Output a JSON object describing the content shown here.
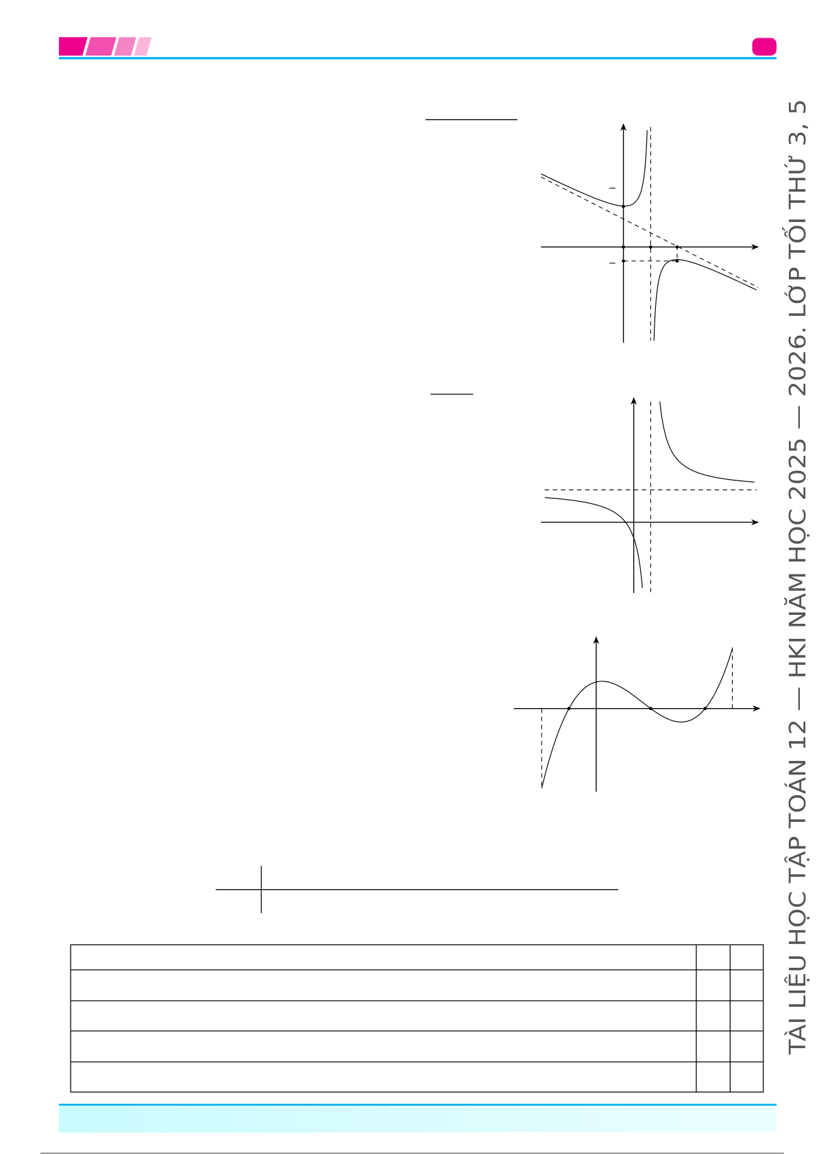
{
  "header": {
    "accent_colors": [
      "#ec008c",
      "#f34fae",
      "#f585c5",
      "#fbb6dc"
    ],
    "rule_color": "#00aeef",
    "badge_color": "#ec008c"
  },
  "side_text": "TÀI LIỆU HỌC TẬP TOÁN 12 — HKI NĂM HỌC 2025 — 2026. LỚP TỐI THỨ 3, 5",
  "footer": {
    "rule_color": "#00aeef",
    "band_color": "#ccfbff"
  }
}
